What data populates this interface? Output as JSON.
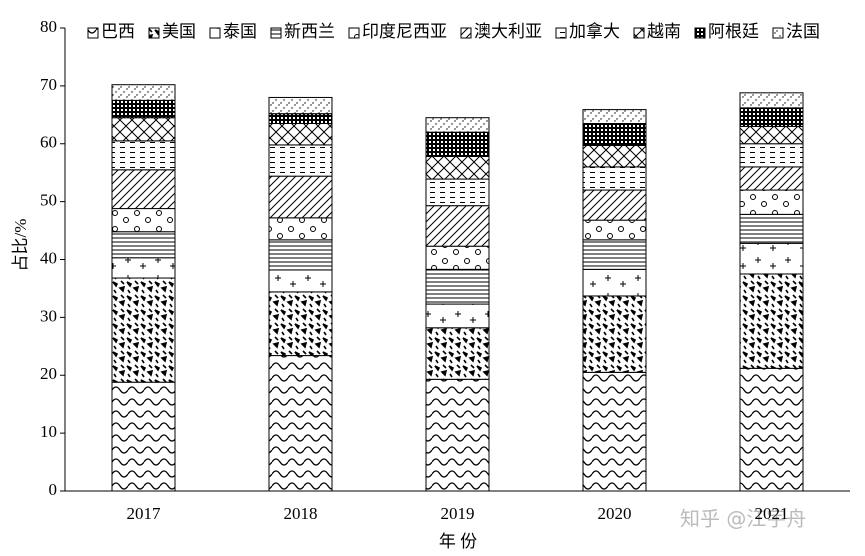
{
  "chart_data": {
    "type": "stacked-bar",
    "xlabel": "年 份",
    "ylabel": "占比/%",
    "categories": [
      "2017",
      "2018",
      "2019",
      "2020",
      "2021"
    ],
    "ylim": [
      0,
      80
    ],
    "yticks": [
      0,
      10,
      20,
      30,
      40,
      50,
      60,
      70,
      80
    ],
    "legend": "top",
    "series": [
      {
        "name": "巴西",
        "values": [
          18.8,
          23.4,
          19.3,
          20.5,
          21.2
        ]
      },
      {
        "name": "美国",
        "values": [
          18.0,
          11.0,
          8.9,
          13.2,
          16.3
        ]
      },
      {
        "name": "泰国",
        "values": [
          3.5,
          3.8,
          4.1,
          4.6,
          5.3
        ]
      },
      {
        "name": "新西兰",
        "values": [
          4.5,
          5.2,
          6.0,
          5.1,
          5.0
        ]
      },
      {
        "name": "印度尼西亚",
        "values": [
          4.0,
          3.8,
          4.0,
          3.4,
          4.2
        ]
      },
      {
        "name": "澳大利亚",
        "values": [
          6.7,
          7.2,
          7.0,
          5.2,
          4.0
        ]
      },
      {
        "name": "加拿大",
        "values": [
          5.0,
          5.4,
          4.6,
          4.0,
          4.0
        ]
      },
      {
        "name": "越南",
        "values": [
          4.0,
          3.7,
          3.9,
          3.7,
          3.0
        ]
      },
      {
        "name": "阿根廷",
        "values": [
          3.0,
          1.7,
          4.2,
          3.8,
          3.2
        ]
      },
      {
        "name": "法国",
        "values": [
          2.7,
          2.8,
          2.5,
          2.4,
          2.6
        ]
      }
    ]
  },
  "watermark": "知乎 @江宇舟"
}
